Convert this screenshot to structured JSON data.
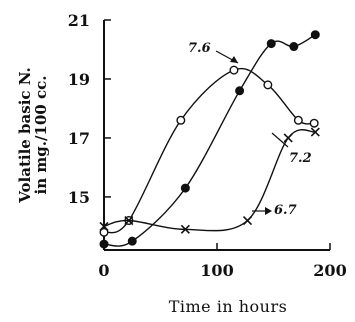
{
  "chart_data": {
    "type": "line",
    "title": "",
    "xlabel": "Time in hours",
    "ylabel_lines": [
      "Volatile basic N.",
      "in mg./100 cc."
    ],
    "xlim": [
      0,
      200
    ],
    "ylim": [
      13.2,
      21
    ],
    "x_ticks": [
      0,
      100,
      200
    ],
    "y_ticks": [
      15,
      17,
      19,
      21
    ],
    "grid": false,
    "legend": "none",
    "series": [
      {
        "name": "7.6",
        "marker": "open-circle",
        "x": [
          0,
          22,
          68,
          115,
          145,
          172,
          186
        ],
        "y": [
          13.8,
          14.2,
          17.6,
          19.3,
          18.8,
          17.6,
          17.5
        ]
      },
      {
        "name": "7.2",
        "marker": "filled-circle",
        "x": [
          0,
          25,
          72,
          120,
          148,
          168,
          187
        ],
        "y": [
          13.4,
          13.5,
          15.3,
          18.6,
          20.2,
          20.1,
          20.5
        ]
      },
      {
        "name": "6.7",
        "marker": "cross",
        "x": [
          0,
          22,
          72,
          127,
          163,
          187
        ],
        "y": [
          14.0,
          14.2,
          13.9,
          14.2,
          17.0,
          17.2
        ]
      }
    ],
    "annotations": [
      {
        "text": "7.6",
        "series": "7.6"
      },
      {
        "text": "7.2",
        "series": "7.2"
      },
      {
        "text": "6.7",
        "series": "6.7"
      }
    ]
  }
}
